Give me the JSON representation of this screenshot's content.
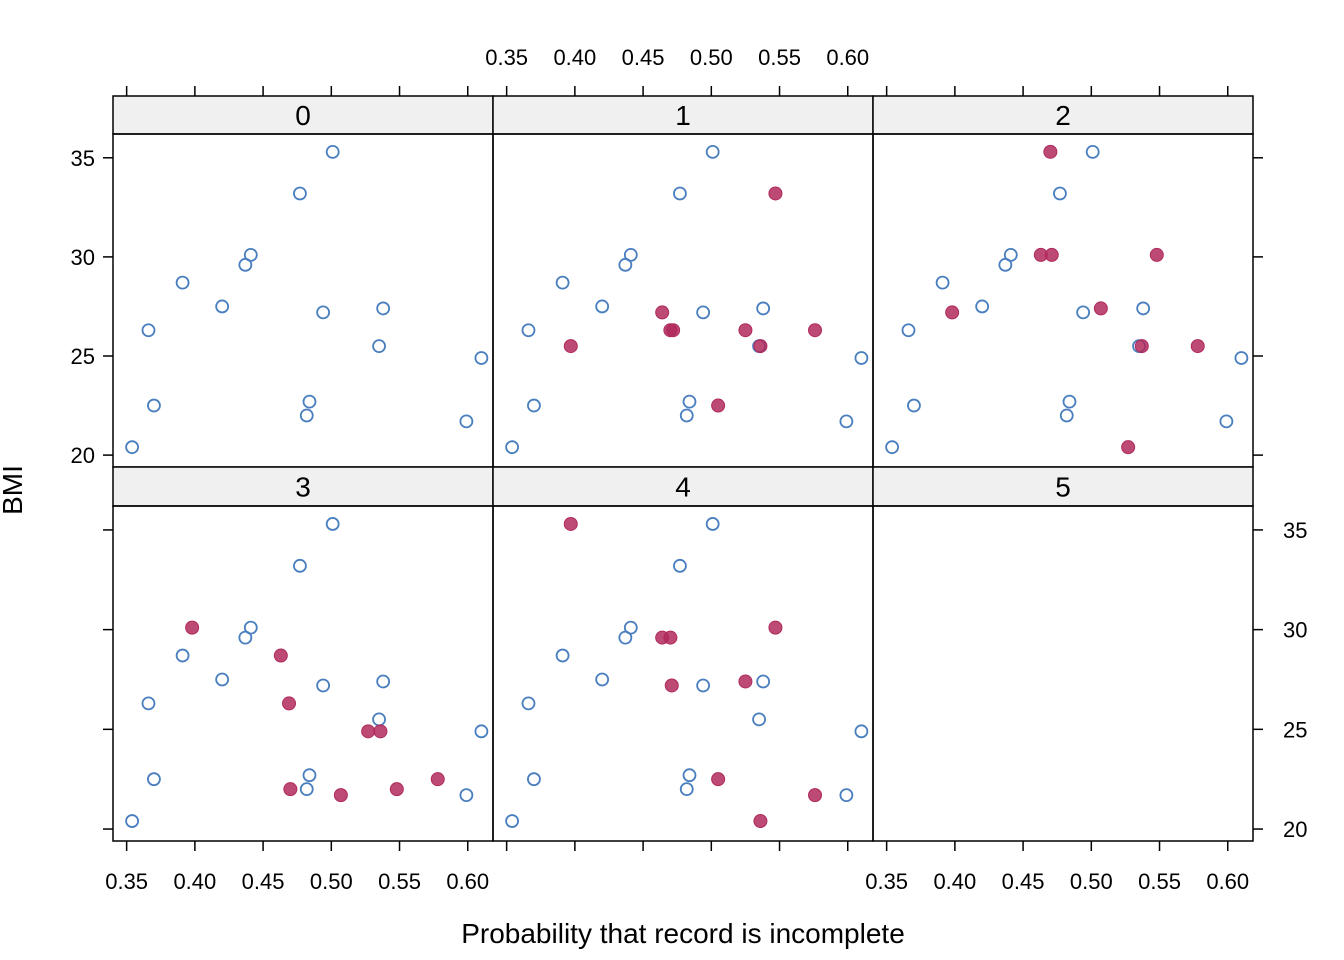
{
  "chart_data": {
    "type": "scatter",
    "title": "",
    "xlabel": "Probability that record is incomplete",
    "ylabel": "BMI",
    "xlim": [
      0.34,
      0.6185
    ],
    "ylim": [
      19.4,
      36.2
    ],
    "x_ticks": [
      0.35,
      0.4,
      0.45,
      0.5,
      0.55,
      0.6
    ],
    "x_tick_labels": [
      "0.35",
      "0.40",
      "0.45",
      "0.50",
      "0.55",
      "0.60"
    ],
    "y_ticks": [
      20,
      25,
      30,
      35
    ],
    "y_tick_labels": [
      "20",
      "25",
      "30",
      "35"
    ],
    "grid": false,
    "legend": "none",
    "colors": {
      "observed": "#4a7fbf",
      "imputed": "#b02a5c",
      "strip": "#f0f0f0"
    },
    "observed": {
      "x": [
        0.501,
        0.477,
        0.441,
        0.437,
        0.391,
        0.42,
        0.366,
        0.494,
        0.538,
        0.535,
        0.61,
        0.484,
        0.482,
        0.37,
        0.354,
        0.599
      ],
      "y": [
        35.3,
        33.2,
        30.1,
        29.6,
        28.7,
        27.5,
        26.3,
        27.2,
        27.4,
        25.5,
        24.9,
        22.7,
        22.0,
        22.5,
        20.4,
        21.7
      ]
    },
    "panels": [
      {
        "label": "0",
        "imputed": {
          "x": [],
          "y": []
        }
      },
      {
        "label": "1",
        "imputed": {
          "x": [
            0.547,
            0.464,
            0.47,
            0.472,
            0.397,
            0.525,
            0.576,
            0.536,
            0.505
          ],
          "y": [
            33.2,
            27.2,
            26.3,
            26.3,
            25.5,
            26.3,
            26.3,
            25.5,
            22.5
          ]
        }
      },
      {
        "label": "2",
        "imputed": {
          "x": [
            0.47,
            0.463,
            0.471,
            0.548,
            0.398,
            0.507,
            0.537,
            0.578,
            0.527
          ],
          "y": [
            35.3,
            30.1,
            30.1,
            30.1,
            27.2,
            27.4,
            25.5,
            25.5,
            20.4
          ]
        }
      },
      {
        "label": "3",
        "imputed": {
          "x": [
            0.398,
            0.463,
            0.469,
            0.527,
            0.536,
            0.578,
            0.47,
            0.548,
            0.507
          ],
          "y": [
            30.1,
            28.7,
            26.3,
            24.9,
            24.9,
            22.5,
            22.0,
            22.0,
            21.7
          ]
        }
      },
      {
        "label": "4",
        "imputed": {
          "x": [
            0.397,
            0.464,
            0.47,
            0.547,
            0.471,
            0.525,
            0.505,
            0.576,
            0.536
          ],
          "y": [
            35.3,
            29.6,
            29.6,
            30.1,
            27.2,
            27.4,
            22.5,
            21.7,
            20.4
          ]
        }
      },
      {
        "label": "5",
        "imputed": null
      }
    ]
  }
}
